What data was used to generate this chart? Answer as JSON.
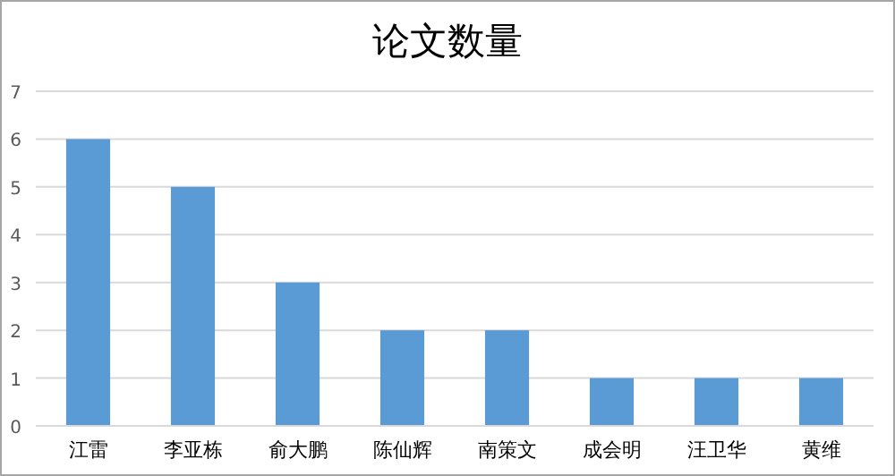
{
  "chart_data": {
    "type": "bar",
    "title": "论文数量",
    "categories": [
      "江雷",
      "李亚栋",
      "俞大鹏",
      "陈仙辉",
      "南策文",
      "成会明",
      "汪卫华",
      "黄维"
    ],
    "values": [
      6,
      5,
      3,
      2,
      2,
      1,
      1,
      1
    ],
    "color": "#5b9bd5",
    "ylim": [
      0,
      7
    ],
    "yticks": [
      0,
      1,
      2,
      3,
      4,
      5,
      6,
      7
    ],
    "grid": "y"
  }
}
